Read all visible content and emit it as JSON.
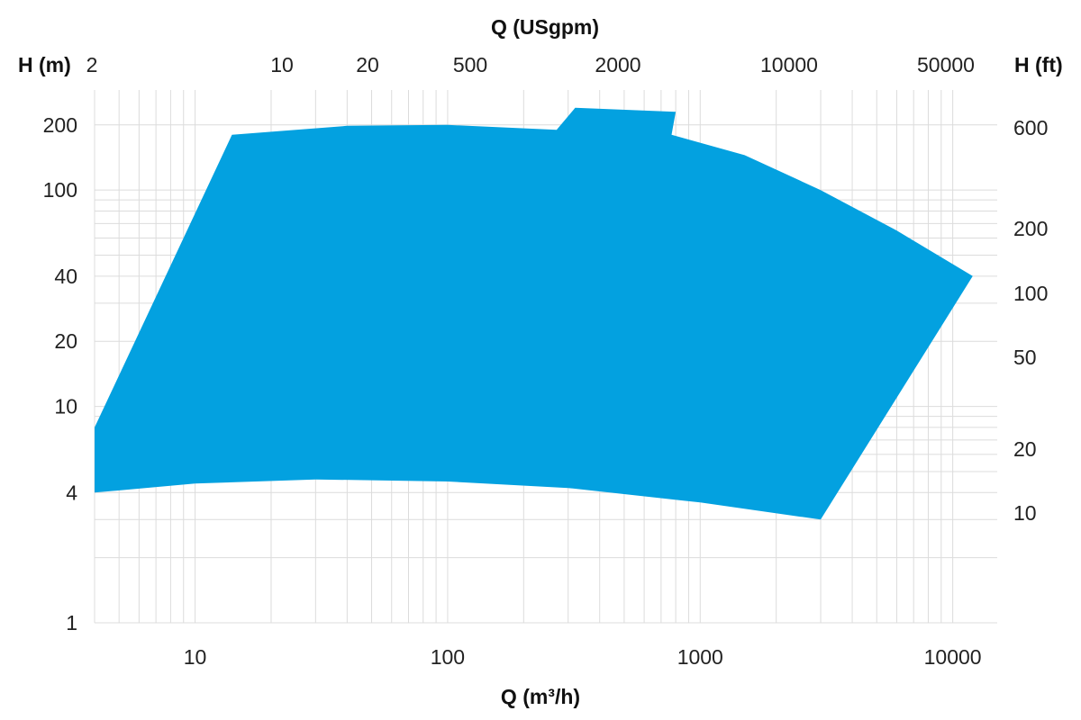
{
  "chart_data": {
    "type": "area",
    "title": "",
    "x_axis": {
      "label": "Q (m³/h)",
      "scale": "log",
      "range": [
        4,
        15000
      ],
      "ticks": [
        10,
        100,
        1000,
        10000
      ],
      "tick_labels": [
        "10",
        "100",
        "1000",
        "10000"
      ]
    },
    "x2_axis": {
      "label": "Q (USgpm)",
      "tick_labels": [
        "2",
        "10",
        "20",
        "500",
        "2000",
        "10000",
        "50000"
      ]
    },
    "y_axis": {
      "label": "H (m)",
      "scale": "log",
      "range": [
        1,
        290
      ],
      "ticks": [
        1,
        4,
        10,
        20,
        40,
        100,
        200
      ],
      "tick_labels": [
        "1",
        "4",
        "10",
        "20",
        "40",
        "100",
        "200"
      ]
    },
    "y2_axis": {
      "label": "H (ft)",
      "tick_labels": [
        "600",
        "200",
        "100",
        "50",
        "20",
        "10"
      ]
    },
    "grid": true,
    "fill_color": "#03a1e0",
    "envelope": {
      "x": [
        4,
        14,
        40,
        100,
        270,
        320,
        800,
        770,
        1500,
        3000,
        6000,
        12000,
        3000,
        1000,
        300,
        100,
        30,
        10,
        4
      ],
      "y": [
        8,
        180,
        198,
        200,
        190,
        240,
        230,
        180,
        145,
        100,
        65,
        40,
        3,
        3.6,
        4.2,
        4.5,
        4.6,
        4.4,
        4
      ]
    }
  }
}
